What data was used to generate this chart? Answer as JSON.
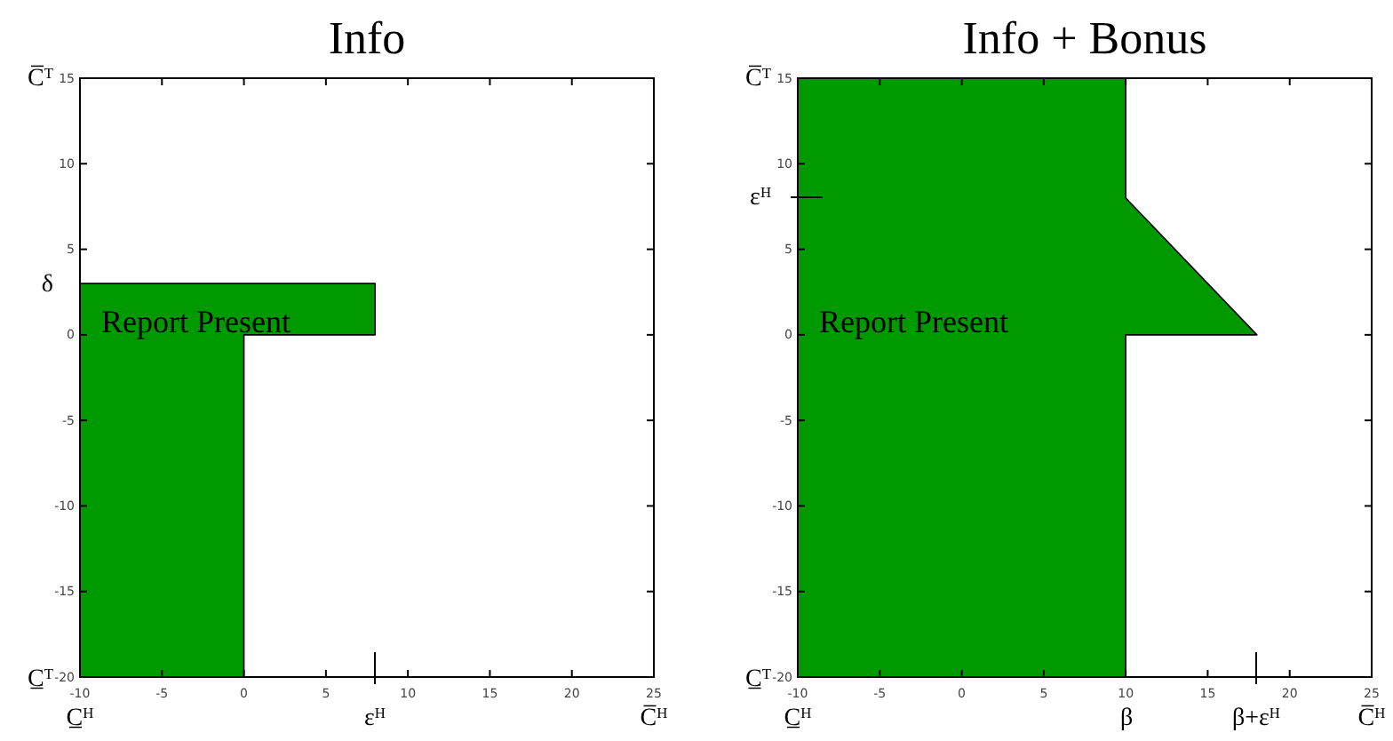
{
  "chart_data": [
    {
      "type": "area",
      "title": "Info",
      "xlim": [
        -10,
        25
      ],
      "ylim": [
        -20,
        15
      ],
      "grid": false,
      "xticks": [
        -10,
        -5,
        0,
        5,
        10,
        15,
        20,
        25
      ],
      "yticks": [
        -20,
        -15,
        -10,
        -5,
        0,
        5,
        10,
        15
      ],
      "series": [
        {
          "color": "#009900",
          "x": [
            -10,
            -10,
            8,
            8,
            0,
            0
          ],
          "values": [
            -20,
            3,
            3,
            0,
            0,
            -20
          ]
        }
      ],
      "annotations": [
        "Report Present",
        "C̅$^{T}$",
        "δ",
        "C̲$^{T}$",
        "C̲$^{H}$",
        "ε$^{H}$",
        "C̅$^{H}$"
      ]
    },
    {
      "type": "area",
      "title": "Info + Bonus",
      "xlim": [
        -10,
        25
      ],
      "ylim": [
        -20,
        15
      ],
      "grid": false,
      "xticks": [
        -10,
        -5,
        0,
        5,
        10,
        15,
        20,
        25
      ],
      "yticks": [
        -20,
        -15,
        -10,
        -5,
        0,
        5,
        10,
        15
      ],
      "series": [
        {
          "color": "#009900",
          "x": [
            -10,
            -10,
            10,
            10,
            18,
            10,
            10
          ],
          "values": [
            -20,
            15,
            15,
            8,
            0,
            0,
            -20
          ]
        }
      ],
      "annotations": [
        "Report Present",
        "C̅$^{T}$",
        "ε$^{H}$",
        "C̲$^{T}$",
        "C̲$^{H}$",
        "β",
        "β+ε$^{H}$",
        "C̅$^{H}$"
      ]
    }
  ]
}
